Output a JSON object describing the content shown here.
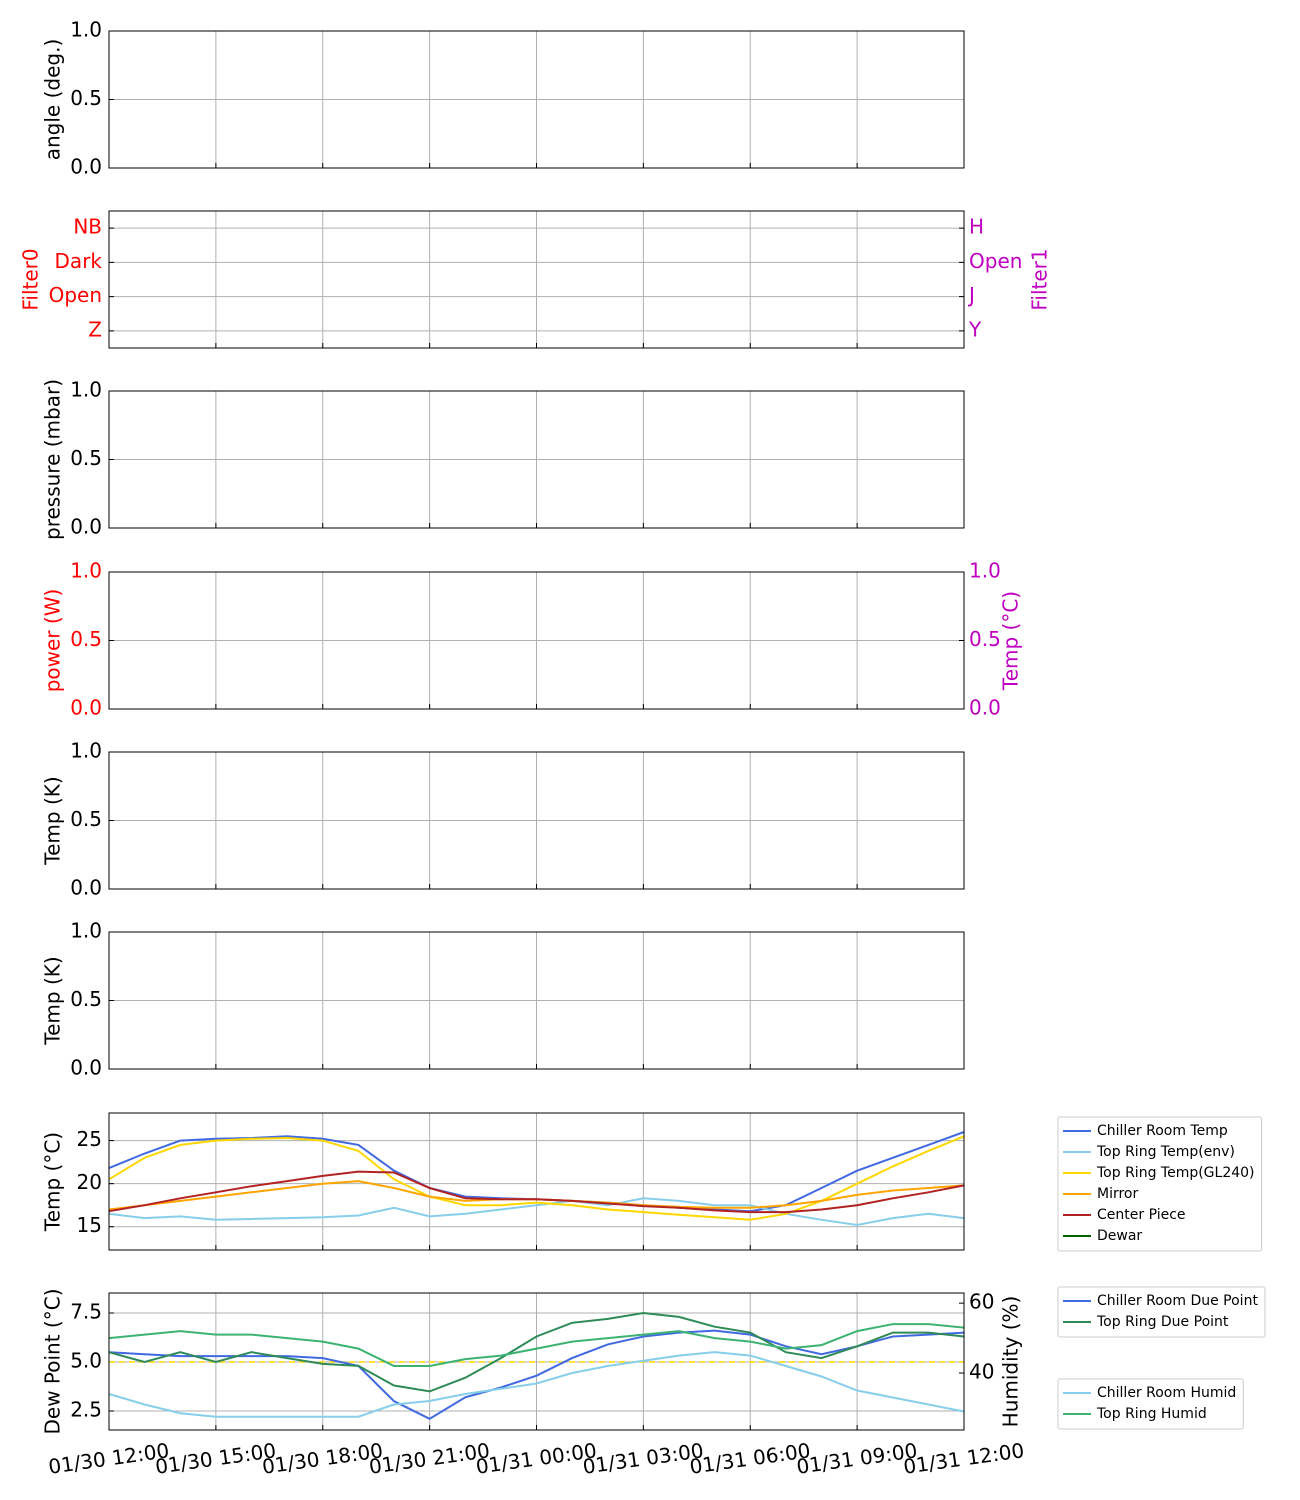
{
  "chart_data": [
    {
      "type": "line",
      "ylabel": "angle (deg.)",
      "ylim": [
        0,
        1
      ],
      "yticks": [
        {
          "value": 0,
          "label": "0.0"
        },
        {
          "value": 0.5,
          "label": "0.5"
        },
        {
          "value": 1,
          "label": "1.0"
        }
      ],
      "xlim": [
        "01/30 12:00",
        "01/31 12:00"
      ],
      "xticks": [
        "01/30 12:00",
        "01/30 15:00",
        "01/30 18:00",
        "01/30 21:00",
        "01/31 00:00",
        "01/31 03:00",
        "01/31 06:00",
        "01/31 09:00",
        "01/31 12:00"
      ],
      "grid": true
    },
    {
      "type": "line",
      "ylabel": "Filter0",
      "ylabel_color": "#ff0000",
      "ylim": [
        -0.5,
        3.5
      ],
      "yticks": [
        {
          "value": 0,
          "label": "Z"
        },
        {
          "value": 1,
          "label": "Open"
        },
        {
          "value": 2,
          "label": "Dark"
        },
        {
          "value": 3,
          "label": "NB"
        }
      ],
      "y2label": "Filter1",
      "y2label_color": "#c000c0",
      "y2lim": [
        -0.5,
        3.5
      ],
      "y2ticks": [
        {
          "value": 0,
          "label": "Y"
        },
        {
          "value": 1,
          "label": "J"
        },
        {
          "value": 2,
          "label": "Open"
        },
        {
          "value": 3,
          "label": "H"
        }
      ],
      "xlim": [
        "01/30 12:00",
        "01/31 12:00"
      ],
      "xticks": [
        "01/30 12:00",
        "01/30 15:00",
        "01/30 18:00",
        "01/30 21:00",
        "01/31 00:00",
        "01/31 03:00",
        "01/31 06:00",
        "01/31 09:00",
        "01/31 12:00"
      ],
      "grid": true
    },
    {
      "type": "line",
      "ylabel": "pressure (mbar)",
      "ylim": [
        0,
        1
      ],
      "yticks": [
        {
          "value": 0,
          "label": "0.0"
        },
        {
          "value": 0.5,
          "label": "0.5"
        },
        {
          "value": 1,
          "label": "1.0"
        }
      ],
      "xlim": [
        "01/30 12:00",
        "01/31 12:00"
      ],
      "xticks": [
        "01/30 12:00",
        "01/30 15:00",
        "01/30 18:00",
        "01/30 21:00",
        "01/31 00:00",
        "01/31 03:00",
        "01/31 06:00",
        "01/31 09:00",
        "01/31 12:00"
      ],
      "grid": true
    },
    {
      "type": "line",
      "ylabel": "power (W)",
      "ylabel_color": "#ff0000",
      "ylim": [
        0,
        1
      ],
      "yticks": [
        {
          "value": 0,
          "label": "0.0"
        },
        {
          "value": 0.5,
          "label": "0.5"
        },
        {
          "value": 1,
          "label": "1.0"
        }
      ],
      "y2label": "Temp (°C)",
      "y2label_color": "#c000c0",
      "y2lim": [
        0,
        1
      ],
      "y2ticks": [
        {
          "value": 0,
          "label": "0.0"
        },
        {
          "value": 0.5,
          "label": "0.5"
        },
        {
          "value": 1,
          "label": "1.0"
        }
      ],
      "xlim": [
        "01/30 12:00",
        "01/31 12:00"
      ],
      "xticks": [
        "01/30 12:00",
        "01/30 15:00",
        "01/30 18:00",
        "01/30 21:00",
        "01/31 00:00",
        "01/31 03:00",
        "01/31 06:00",
        "01/31 09:00",
        "01/31 12:00"
      ],
      "grid": true
    },
    {
      "type": "line",
      "ylabel": "Temp (K)",
      "ylim": [
        0,
        1
      ],
      "yticks": [
        {
          "value": 0,
          "label": "0.0"
        },
        {
          "value": 0.5,
          "label": "0.5"
        },
        {
          "value": 1,
          "label": "1.0"
        }
      ],
      "xlim": [
        "01/30 12:00",
        "01/31 12:00"
      ],
      "xticks": [
        "01/30 12:00",
        "01/30 15:00",
        "01/30 18:00",
        "01/30 21:00",
        "01/31 00:00",
        "01/31 03:00",
        "01/31 06:00",
        "01/31 09:00",
        "01/31 12:00"
      ],
      "grid": true
    },
    {
      "type": "line",
      "ylabel": "Temp (K)",
      "ylim": [
        0,
        1
      ],
      "yticks": [
        {
          "value": 0,
          "label": "0.0"
        },
        {
          "value": 0.5,
          "label": "0.5"
        },
        {
          "value": 1,
          "label": "1.0"
        }
      ],
      "xlim": [
        "01/30 12:00",
        "01/31 12:00"
      ],
      "xticks": [
        "01/30 12:00",
        "01/30 15:00",
        "01/30 18:00",
        "01/30 21:00",
        "01/31 00:00",
        "01/31 03:00",
        "01/31 06:00",
        "01/31 09:00",
        "01/31 12:00"
      ],
      "grid": true
    },
    {
      "type": "line",
      "ylabel": "Temp (°C)",
      "ylim": [
        12.3,
        28.2
      ],
      "yticks": [
        15,
        20,
        25
      ],
      "xlim": [
        "01/30 12:00",
        "01/31 12:00"
      ],
      "xticks": [
        "01/30 12:00",
        "01/30 15:00",
        "01/30 18:00",
        "01/30 21:00",
        "01/31 00:00",
        "01/31 03:00",
        "01/31 06:00",
        "01/31 09:00",
        "01/31 12:00"
      ],
      "grid": true,
      "legend": "outside right",
      "x": [
        "01/30 12:00",
        "01/30 13:00",
        "01/30 14:00",
        "01/30 15:00",
        "01/30 16:00",
        "01/30 17:00",
        "01/30 18:00",
        "01/30 19:00",
        "01/30 20:00",
        "01/30 21:00",
        "01/30 22:00",
        "01/30 23:00",
        "01/31 00:00",
        "01/31 01:00",
        "01/31 02:00",
        "01/31 03:00",
        "01/31 04:00",
        "01/31 05:00",
        "01/31 06:00",
        "01/31 07:00",
        "01/31 08:00",
        "01/31 09:00",
        "01/31 10:00",
        "01/31 11:00",
        "01/31 12:00"
      ],
      "series": [
        {
          "name": "Chiller Room Temp",
          "color": "#4169e1",
          "values": [
            21.8,
            23.5,
            25,
            25.2,
            25.3,
            25.5,
            25.2,
            24.5,
            21.5,
            19.5,
            18.5,
            18.3,
            18.2,
            18,
            17.8,
            17.5,
            17.2,
            17,
            16.8,
            17.5,
            19.5,
            21.5,
            23,
            24.5,
            26
          ]
        },
        {
          "name": "Top Ring Temp(env)",
          "color": "#87ceeb",
          "values": [
            16.5,
            16,
            16.2,
            15.8,
            15.9,
            16,
            16.1,
            16.3,
            17.2,
            16.2,
            16.5,
            17,
            17.5,
            18,
            17.5,
            18.3,
            18,
            17.5,
            17.5,
            16.5,
            15.8,
            15.2,
            16,
            16.5,
            16
          ]
        },
        {
          "name": "Top Ring Temp(GL240)",
          "color": "#ffd700",
          "values": [
            20.5,
            23,
            24.5,
            25,
            25.2,
            25.3,
            25,
            23.8,
            20.5,
            18.5,
            17.5,
            17.5,
            17.8,
            17.5,
            17,
            16.7,
            16.4,
            16.1,
            15.8,
            16.5,
            18,
            20,
            22,
            23.8,
            25.5
          ]
        },
        {
          "name": "Mirror",
          "color": "#ffa500",
          "values": [
            17,
            17.5,
            18,
            18.5,
            19,
            19.5,
            20,
            20.3,
            19.5,
            18.5,
            18,
            18.2,
            18.2,
            18,
            17.8,
            17.5,
            17.3,
            17.2,
            17.2,
            17.5,
            18,
            18.7,
            19.2,
            19.5,
            19.8
          ]
        },
        {
          "name": "Center Piece",
          "color": "#b22222",
          "values": [
            16.8,
            17.5,
            18.3,
            19,
            19.7,
            20.3,
            20.9,
            21.4,
            21.3,
            19.5,
            18.3,
            18.2,
            18.2,
            18,
            17.7,
            17.4,
            17.2,
            16.9,
            16.7,
            16.7,
            17,
            17.5,
            18.3,
            19,
            19.8
          ]
        },
        {
          "name": "Dewar",
          "color": "#006400",
          "values": [
            null,
            null,
            null,
            null,
            null,
            null,
            null,
            null,
            null,
            null,
            null,
            null,
            null,
            null,
            null,
            null,
            null,
            null,
            null,
            null,
            null,
            null,
            null,
            null,
            null
          ]
        }
      ]
    },
    {
      "type": "line",
      "ylabel": "Dew Point (°C)",
      "ylim": [
        1.53,
        8.52
      ],
      "yticks": [
        2.5,
        {
          "value": 5,
          "label": "5.0"
        },
        7.5
      ],
      "y2label": "Humidity (%)",
      "y2lim": [
        23.7,
        62.9
      ],
      "y2ticks": [
        40,
        60
      ],
      "xlim": [
        "01/30 12:00",
        "01/31 12:00"
      ],
      "xticks": [
        "01/30 12:00",
        "01/30 15:00",
        "01/30 18:00",
        "01/30 21:00",
        "01/31 00:00",
        "01/31 03:00",
        "01/31 06:00",
        "01/31 09:00",
        "01/31 12:00"
      ],
      "grid": true,
      "legend": "outside right",
      "hlines": [
        {
          "value": 5,
          "color": "#ffd700",
          "style": "dashed"
        }
      ],
      "x": [
        "01/30 12:00",
        "01/30 13:00",
        "01/30 14:00",
        "01/30 15:00",
        "01/30 16:00",
        "01/30 17:00",
        "01/30 18:00",
        "01/30 19:00",
        "01/30 20:00",
        "01/30 21:00",
        "01/30 22:00",
        "01/30 23:00",
        "01/31 00:00",
        "01/31 01:00",
        "01/31 02:00",
        "01/31 03:00",
        "01/31 04:00",
        "01/31 05:00",
        "01/31 06:00",
        "01/31 07:00",
        "01/31 08:00",
        "01/31 09:00",
        "01/31 10:00",
        "01/31 11:00",
        "01/31 12:00"
      ],
      "series": [
        {
          "name": "Chiller Room Due Point",
          "color": "#4169e1",
          "values": [
            5.5,
            5.4,
            5.3,
            5.3,
            5.3,
            5.3,
            5.2,
            4.8,
            3,
            2.1,
            3.2,
            3.7,
            4.3,
            5.2,
            5.9,
            6.3,
            6.5,
            6.6,
            6.4,
            5.8,
            5.4,
            5.8,
            6.3,
            6.4,
            6.5
          ]
        },
        {
          "name": "Top Ring Due Point",
          "color": "#2e8b57",
          "values": [
            5.5,
            5,
            5.5,
            5,
            5.5,
            5.2,
            4.9,
            4.8,
            3.8,
            3.5,
            4.2,
            5.2,
            6.3,
            7,
            7.2,
            7.5,
            7.3,
            6.8,
            6.5,
            5.5,
            5.2,
            5.8,
            6.5,
            6.5,
            6.3
          ]
        },
        {
          "name": "Chiller Room Humid",
          "color": "#87ceeb",
          "axis": "y2",
          "values": [
            34,
            31,
            28.5,
            27.5,
            27.5,
            27.5,
            27.5,
            27.5,
            31,
            32,
            34,
            35.5,
            37,
            40,
            42,
            43.5,
            45,
            46,
            45,
            42,
            39,
            35,
            33,
            31,
            29
          ]
        },
        {
          "name": "Top Ring Humid",
          "color": "#3cb371",
          "axis": "y2",
          "values": [
            50,
            51,
            52,
            51,
            51,
            50,
            49,
            47,
            42,
            42,
            44,
            45,
            47,
            49,
            50,
            51,
            52,
            50,
            49,
            47,
            48,
            52,
            54,
            54,
            53
          ]
        }
      ]
    }
  ]
}
